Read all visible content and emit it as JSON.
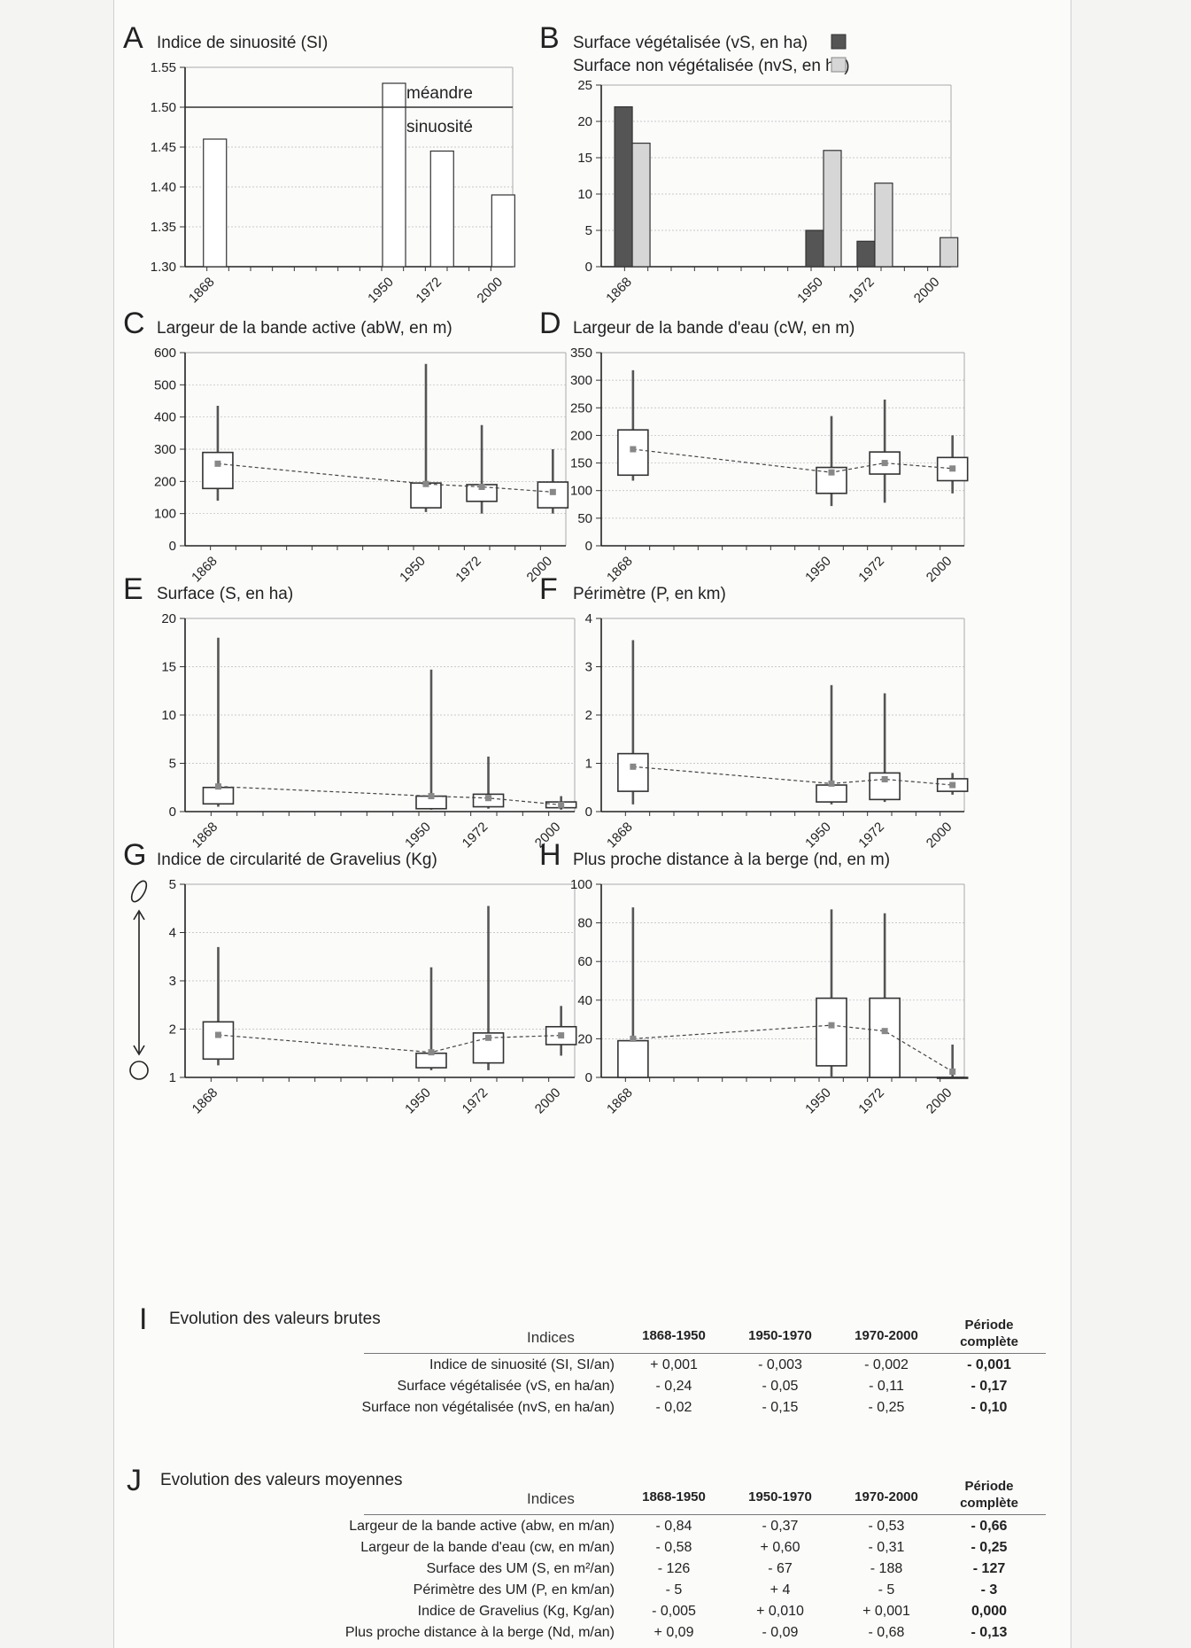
{
  "chart_data": [
    {
      "letter": "A",
      "title": "Indice de sinuosité (SI)",
      "type": "bar",
      "x": [
        1868,
        1950,
        1972,
        2000
      ],
      "y_ticks": [
        "1.55",
        "1.50",
        "1.45",
        "1.40",
        "1.35",
        "1.30"
      ],
      "ylim": [
        1.3,
        1.55
      ],
      "series": [
        {
          "values": [
            1.46,
            1.53,
            1.445,
            1.39
          ],
          "color": "#ffffff"
        }
      ],
      "annotations": {
        "line_value": 1.5,
        "above": "méandre",
        "below": "sinuosité"
      },
      "grid": true
    },
    {
      "letter": "B",
      "title": "Surface végétalisée (vS, en ha)",
      "title2": "Surface non végétalisée (nvS, en ha)",
      "type": "bar",
      "x": [
        1868,
        1950,
        1972,
        2000
      ],
      "y_ticks": [
        "25",
        "20",
        "15",
        "10",
        "5",
        "0"
      ],
      "ylim": [
        0,
        25
      ],
      "series": [
        {
          "name": "Surface végétalisée (vS, en ha)",
          "values": [
            22,
            5,
            3.5,
            0
          ],
          "color": "#555555"
        },
        {
          "name": "Surface non végétalisée (nvS, en ha)",
          "values": [
            17,
            16,
            11.5,
            4
          ],
          "color": "#d6d6d6"
        }
      ],
      "grid": true
    },
    {
      "letter": "C",
      "title": "Largeur de la bande active (abW, en m)",
      "type": "box",
      "x": [
        1868,
        1950,
        1972,
        2000
      ],
      "y_ticks": [
        "600",
        "500",
        "400",
        "300",
        "200",
        "100",
        "0"
      ],
      "ylim": [
        0,
        600
      ],
      "boxes": [
        {
          "x": 1868,
          "min": 140,
          "q1": 178,
          "q3": 290,
          "max": 435,
          "mean": 255
        },
        {
          "x": 1950,
          "min": 105,
          "q1": 118,
          "q3": 195,
          "max": 565,
          "mean": 192
        },
        {
          "x": 1972,
          "min": 100,
          "q1": 138,
          "q3": 190,
          "max": 375,
          "mean": 183
        },
        {
          "x": 2000,
          "min": 100,
          "q1": 118,
          "q3": 198,
          "max": 300,
          "mean": 167
        }
      ],
      "grid": true
    },
    {
      "letter": "D",
      "title": "Largeur de la bande d'eau (cW, en m)",
      "type": "box",
      "x": [
        1868,
        1950,
        1972,
        2000
      ],
      "y_ticks": [
        "350",
        "300",
        "250",
        "200",
        "150",
        "100",
        "50",
        "0"
      ],
      "ylim": [
        0,
        350
      ],
      "boxes": [
        {
          "x": 1868,
          "min": 118,
          "q1": 128,
          "q3": 210,
          "max": 318,
          "mean": 175
        },
        {
          "x": 1950,
          "min": 72,
          "q1": 95,
          "q3": 142,
          "max": 235,
          "mean": 133
        },
        {
          "x": 1972,
          "min": 78,
          "q1": 130,
          "q3": 170,
          "max": 265,
          "mean": 150
        },
        {
          "x": 2000,
          "min": 95,
          "q1": 118,
          "q3": 160,
          "max": 200,
          "mean": 140
        }
      ],
      "grid": true
    },
    {
      "letter": "E",
      "title": "Surface (S, en ha)",
      "type": "box",
      "x": [
        1868,
        1950,
        1972,
        2000
      ],
      "y_ticks": [
        "20",
        "15",
        "10",
        "5",
        "0"
      ],
      "ylim": [
        0,
        20
      ],
      "boxes": [
        {
          "x": 1868,
          "min": 0.5,
          "q1": 0.8,
          "q3": 2.5,
          "max": 18,
          "mean": 2.6
        },
        {
          "x": 1950,
          "min": 0.2,
          "q1": 0.3,
          "q3": 1.6,
          "max": 14.7,
          "mean": 1.6
        },
        {
          "x": 1972,
          "min": 0.3,
          "q1": 0.5,
          "q3": 1.8,
          "max": 5.7,
          "mean": 1.4
        },
        {
          "x": 2000,
          "min": 0.2,
          "q1": 0.4,
          "q3": 1.0,
          "max": 1.6,
          "mean": 0.7
        }
      ],
      "grid": true
    },
    {
      "letter": "F",
      "title": "Périmètre (P, en km)",
      "type": "box",
      "x": [
        1868,
        1950,
        1972,
        2000
      ],
      "y_ticks": [
        "4",
        "3",
        "2",
        "1",
        "0"
      ],
      "ylim": [
        0,
        4
      ],
      "boxes": [
        {
          "x": 1868,
          "min": 0.15,
          "q1": 0.42,
          "q3": 1.2,
          "max": 3.55,
          "mean": 0.93
        },
        {
          "x": 1950,
          "min": 0.15,
          "q1": 0.2,
          "q3": 0.55,
          "max": 2.62,
          "mean": 0.58
        },
        {
          "x": 1972,
          "min": 0.2,
          "q1": 0.25,
          "q3": 0.8,
          "max": 2.45,
          "mean": 0.67
        },
        {
          "x": 2000,
          "min": 0.35,
          "q1": 0.42,
          "q3": 0.68,
          "max": 0.8,
          "mean": 0.55
        }
      ],
      "grid": true
    },
    {
      "letter": "G",
      "title": "Indice de circularité de Gravelius (Kg)",
      "type": "box",
      "x": [
        1868,
        1950,
        1972,
        2000
      ],
      "y_ticks": [
        "5",
        "4",
        "3",
        "2",
        "1"
      ],
      "ylim": [
        1,
        5
      ],
      "boxes": [
        {
          "x": 1868,
          "min": 1.25,
          "q1": 1.38,
          "q3": 2.15,
          "max": 3.7,
          "mean": 1.88
        },
        {
          "x": 1950,
          "min": 1.15,
          "q1": 1.2,
          "q3": 1.5,
          "max": 3.28,
          "mean": 1.52
        },
        {
          "x": 1972,
          "min": 1.15,
          "q1": 1.3,
          "q3": 1.92,
          "max": 4.55,
          "mean": 1.82
        },
        {
          "x": 2000,
          "min": 1.45,
          "q1": 1.68,
          "q3": 2.05,
          "max": 2.48,
          "mean": 1.87
        }
      ],
      "grid": true
    },
    {
      "letter": "H",
      "title": "Plus proche distance à la berge (nd, en m)",
      "type": "box",
      "x": [
        1868,
        1950,
        1972,
        2000
      ],
      "y_ticks": [
        "100",
        "80",
        "60",
        "40",
        "20",
        "0"
      ],
      "ylim": [
        0,
        100
      ],
      "boxes": [
        {
          "x": 1868,
          "min": 0,
          "q1": 0,
          "q3": 19,
          "max": 88,
          "mean": 20
        },
        {
          "x": 1950,
          "min": 0,
          "q1": 6,
          "q3": 41,
          "max": 87,
          "mean": 27
        },
        {
          "x": 1972,
          "min": 0,
          "q1": 0,
          "q3": 41,
          "max": 85,
          "mean": 24
        },
        {
          "x": 2000,
          "min": 0,
          "q1": 0,
          "q3": 0,
          "max": 17,
          "mean": 3
        }
      ],
      "grid": true
    }
  ],
  "table_i": {
    "letter": "I",
    "title": "Evolution des valeurs brutes",
    "indices_label": "Indices",
    "columns": [
      "1868-1950",
      "1950-1970",
      "1970-2000"
    ],
    "last_column": [
      "Période",
      "complète"
    ],
    "rows": [
      {
        "label": "Indice de sinuosité (SI, SI/an)",
        "values": [
          "+ 0,001",
          "- 0,003",
          "- 0,002",
          "- 0,001"
        ]
      },
      {
        "label": "Surface végétalisée (vS, en ha/an)",
        "values": [
          "- 0,24",
          "- 0,05",
          "- 0,11",
          "- 0,17"
        ]
      },
      {
        "label": "Surface non végétalisée (nvS, en ha/an)",
        "values": [
          "- 0,02",
          "- 0,15",
          "- 0,25",
          "- 0,10"
        ]
      }
    ]
  },
  "table_j": {
    "letter": "J",
    "title": "Evolution des valeurs moyennes",
    "indices_label": "Indices",
    "columns": [
      "1868-1950",
      "1950-1970",
      "1970-2000"
    ],
    "last_column": [
      "Période",
      "complète"
    ],
    "rows": [
      {
        "label": "Largeur de la bande active (abw, en m/an)",
        "values": [
          "- 0,84",
          "- 0,37",
          "- 0,53",
          "- 0,66"
        ]
      },
      {
        "label": "Largeur de la bande d'eau (cw, en m/an)",
        "values": [
          "- 0,58",
          "+ 0,60",
          "- 0,31",
          "- 0,25"
        ]
      },
      {
        "label": "Surface des UM (S, en m²/an)",
        "values": [
          "- 126",
          "- 67",
          "- 188",
          "- 127"
        ]
      },
      {
        "label": "Périmètre des UM (P, en km/an)",
        "values": [
          "- 5",
          "+ 4",
          "- 5",
          "- 3"
        ]
      },
      {
        "label": "Indice de Gravelius (Kg, Kg/an)",
        "values": [
          "- 0,005",
          "+ 0,010",
          "+ 0,001",
          "0,000"
        ]
      },
      {
        "label": "Plus proche distance à la berge (Nd, m/an)",
        "values": [
          "+ 0,09",
          "- 0,09",
          "- 0,68",
          "- 0,13"
        ]
      }
    ]
  }
}
